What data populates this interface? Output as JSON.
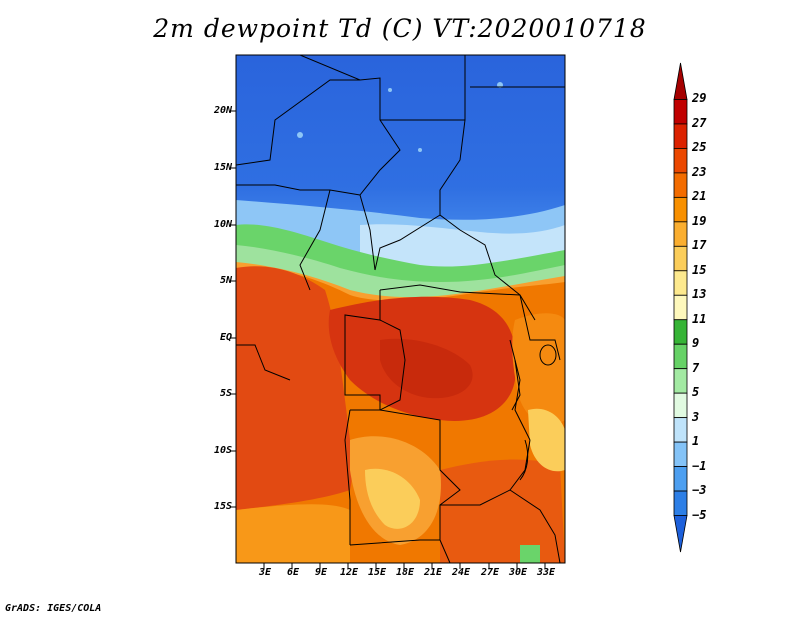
{
  "title": "2m dewpoint Td (C) VT:2020010718",
  "credit": "GrADS: IGES/COLA",
  "lat_labels": [
    "20N",
    "15N",
    "10N",
    "5N",
    "EQ",
    "5S",
    "10S",
    "15S"
  ],
  "lon_labels": [
    "3E",
    "6E",
    "9E",
    "12E",
    "15E",
    "18E",
    "21E",
    "24E",
    "27E",
    "30E",
    "33E"
  ],
  "colorbar": {
    "labels": [
      "29",
      "27",
      "25",
      "23",
      "21",
      "19",
      "17",
      "15",
      "13",
      "11",
      "9",
      "7",
      "5",
      "3",
      "1",
      "−1",
      "−3",
      "−5"
    ],
    "colors_top_to_bottom": [
      "#a50000",
      "#c00000",
      "#dc2200",
      "#eb4800",
      "#f36c00",
      "#f89000",
      "#faae30",
      "#fbcd5a",
      "#fde98e",
      "#fef8bc",
      "#36b436",
      "#66d266",
      "#a3eaa3",
      "#e1fae1",
      "#bfe3fa",
      "#84c3f7",
      "#4d9ff0",
      "#2d7fe6",
      "#1d60db"
    ]
  },
  "map_colors": {
    "blue_dark": "#2a64dc",
    "blue_mid": "#3d82ea",
    "blue_light": "#6aa8f2",
    "blue_pale": "#b0d6f8",
    "green": "#3cb43c",
    "green_light": "#8ee08e",
    "orange": "#f07800",
    "orange_light": "#f8a030",
    "red_orange": "#e04a10",
    "red": "#d03010",
    "yellow": "#fbcd5a"
  }
}
